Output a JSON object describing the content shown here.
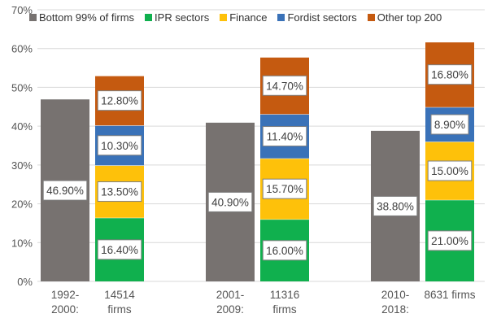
{
  "chart_data": {
    "type": "bar",
    "stacked": true,
    "title": "",
    "xlabel": "",
    "ylabel": "",
    "ylim": [
      0,
      0.7
    ],
    "y_ticks": [
      0,
      0.1,
      0.2,
      0.3,
      0.4,
      0.5,
      0.6,
      0.7
    ],
    "y_tick_labels": [
      "0%",
      "10%",
      "20%",
      "30%",
      "40%",
      "50%",
      "60%",
      "70%"
    ],
    "grid": true,
    "legend_position": "top",
    "series": [
      {
        "name": "Bottom 99% of firms",
        "color": "#777270"
      },
      {
        "name": "IPR sectors",
        "color": "#10b04e"
      },
      {
        "name": "Finance",
        "color": "#fec10a"
      },
      {
        "name": "Fordist sectors",
        "color": "#3a72b8"
      },
      {
        "name": "Other top 200",
        "color": "#c55a10"
      }
    ],
    "groups": [
      {
        "period_label": [
          "1992-",
          "2000:"
        ],
        "firms_label": [
          "14514",
          "firms"
        ],
        "bottom": {
          "value": 0.469,
          "label": "46.90%"
        },
        "stack": [
          {
            "series": "IPR sectors",
            "value": 0.164,
            "label": "16.40%"
          },
          {
            "series": "Finance",
            "value": 0.135,
            "label": "13.50%"
          },
          {
            "series": "Fordist sectors",
            "value": 0.103,
            "label": "10.30%"
          },
          {
            "series": "Other top 200",
            "value": 0.128,
            "label": "12.80%"
          }
        ]
      },
      {
        "period_label": [
          "2001-",
          "2009:"
        ],
        "firms_label": [
          "11316",
          "firms"
        ],
        "bottom": {
          "value": 0.409,
          "label": "40.90%"
        },
        "stack": [
          {
            "series": "IPR sectors",
            "value": 0.16,
            "label": "16.00%"
          },
          {
            "series": "Finance",
            "value": 0.157,
            "label": "15.70%"
          },
          {
            "series": "Fordist sectors",
            "value": 0.114,
            "label": "11.40%"
          },
          {
            "series": "Other top 200",
            "value": 0.147,
            "label": "14.70%"
          }
        ]
      },
      {
        "period_label": [
          "2010-",
          "2018:"
        ],
        "firms_label": [
          "8631 firms"
        ],
        "bottom": {
          "value": 0.388,
          "label": "38.80%"
        },
        "stack": [
          {
            "series": "IPR sectors",
            "value": 0.21,
            "label": "21.00%"
          },
          {
            "series": "Finance",
            "value": 0.15,
            "label": "15.00%"
          },
          {
            "series": "Fordist sectors",
            "value": 0.089,
            "label": "8.90%"
          },
          {
            "series": "Other top 200",
            "value": 0.168,
            "label": "16.80%"
          }
        ]
      }
    ]
  }
}
